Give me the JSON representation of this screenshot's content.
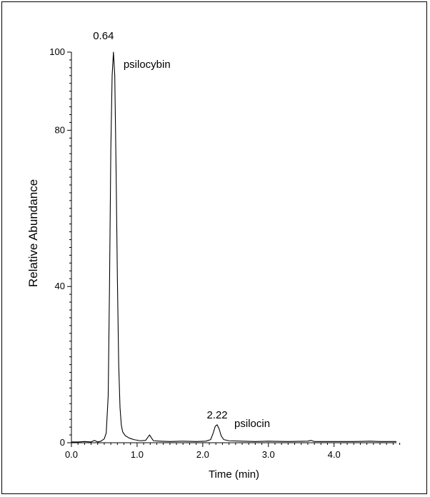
{
  "chart_data": {
    "type": "line",
    "title": "",
    "xlabel": "Time (min)",
    "ylabel": "Relative Abundance",
    "xlim": [
      0.0,
      4.95
    ],
    "ylim": [
      0,
      100
    ],
    "x_ticks": [
      "0.0",
      "1.0",
      "2.0",
      "3.0",
      "4.0"
    ],
    "y_ticks": [
      "0",
      "40",
      "80",
      "100"
    ],
    "grid": false,
    "legend": "none",
    "line_color": "#000000",
    "series": [
      {
        "points": [
          [
            0.0,
            0.2
          ],
          [
            0.1,
            0.2
          ],
          [
            0.2,
            0.3
          ],
          [
            0.3,
            0.2
          ],
          [
            0.35,
            0.6
          ],
          [
            0.4,
            0.2
          ],
          [
            0.45,
            0.4
          ],
          [
            0.5,
            1.0
          ],
          [
            0.53,
            2.5
          ],
          [
            0.56,
            12.0
          ],
          [
            0.58,
            40.0
          ],
          [
            0.6,
            75.0
          ],
          [
            0.62,
            94.0
          ],
          [
            0.64,
            100.0
          ],
          [
            0.66,
            94.0
          ],
          [
            0.68,
            70.0
          ],
          [
            0.7,
            42.0
          ],
          [
            0.72,
            20.0
          ],
          [
            0.74,
            9.0
          ],
          [
            0.76,
            4.5
          ],
          [
            0.78,
            2.8
          ],
          [
            0.82,
            1.8
          ],
          [
            0.88,
            1.2
          ],
          [
            0.95,
            0.8
          ],
          [
            1.05,
            0.5
          ],
          [
            1.13,
            0.6
          ],
          [
            1.16,
            1.3
          ],
          [
            1.19,
            2.0
          ],
          [
            1.22,
            1.2
          ],
          [
            1.25,
            0.5
          ],
          [
            1.35,
            0.4
          ],
          [
            1.5,
            0.3
          ],
          [
            1.7,
            0.4
          ],
          [
            1.9,
            0.3
          ],
          [
            2.05,
            0.4
          ],
          [
            2.12,
            0.8
          ],
          [
            2.16,
            2.5
          ],
          [
            2.19,
            4.2
          ],
          [
            2.22,
            4.6
          ],
          [
            2.25,
            3.5
          ],
          [
            2.28,
            1.8
          ],
          [
            2.32,
            0.8
          ],
          [
            2.4,
            0.5
          ],
          [
            2.6,
            0.4
          ],
          [
            2.8,
            0.3
          ],
          [
            3.0,
            0.4
          ],
          [
            3.3,
            0.3
          ],
          [
            3.6,
            0.4
          ],
          [
            3.65,
            0.6
          ],
          [
            3.7,
            0.3
          ],
          [
            4.0,
            0.3
          ],
          [
            4.3,
            0.3
          ],
          [
            4.55,
            0.4
          ],
          [
            4.7,
            0.3
          ],
          [
            4.95,
            0.3
          ]
        ]
      }
    ],
    "annotations": [
      {
        "id": "psilocybin-rt",
        "text": "0.64",
        "x": 0.64,
        "y": 100
      },
      {
        "id": "psilocybin-name",
        "text": "psilocybin",
        "x": 0.64,
        "y": 100
      },
      {
        "id": "psilocin-rt",
        "text": "2.22",
        "x": 2.22,
        "y": 4.6
      },
      {
        "id": "psilocin-name",
        "text": "psilocin",
        "x": 2.22,
        "y": 4.6
      }
    ]
  }
}
